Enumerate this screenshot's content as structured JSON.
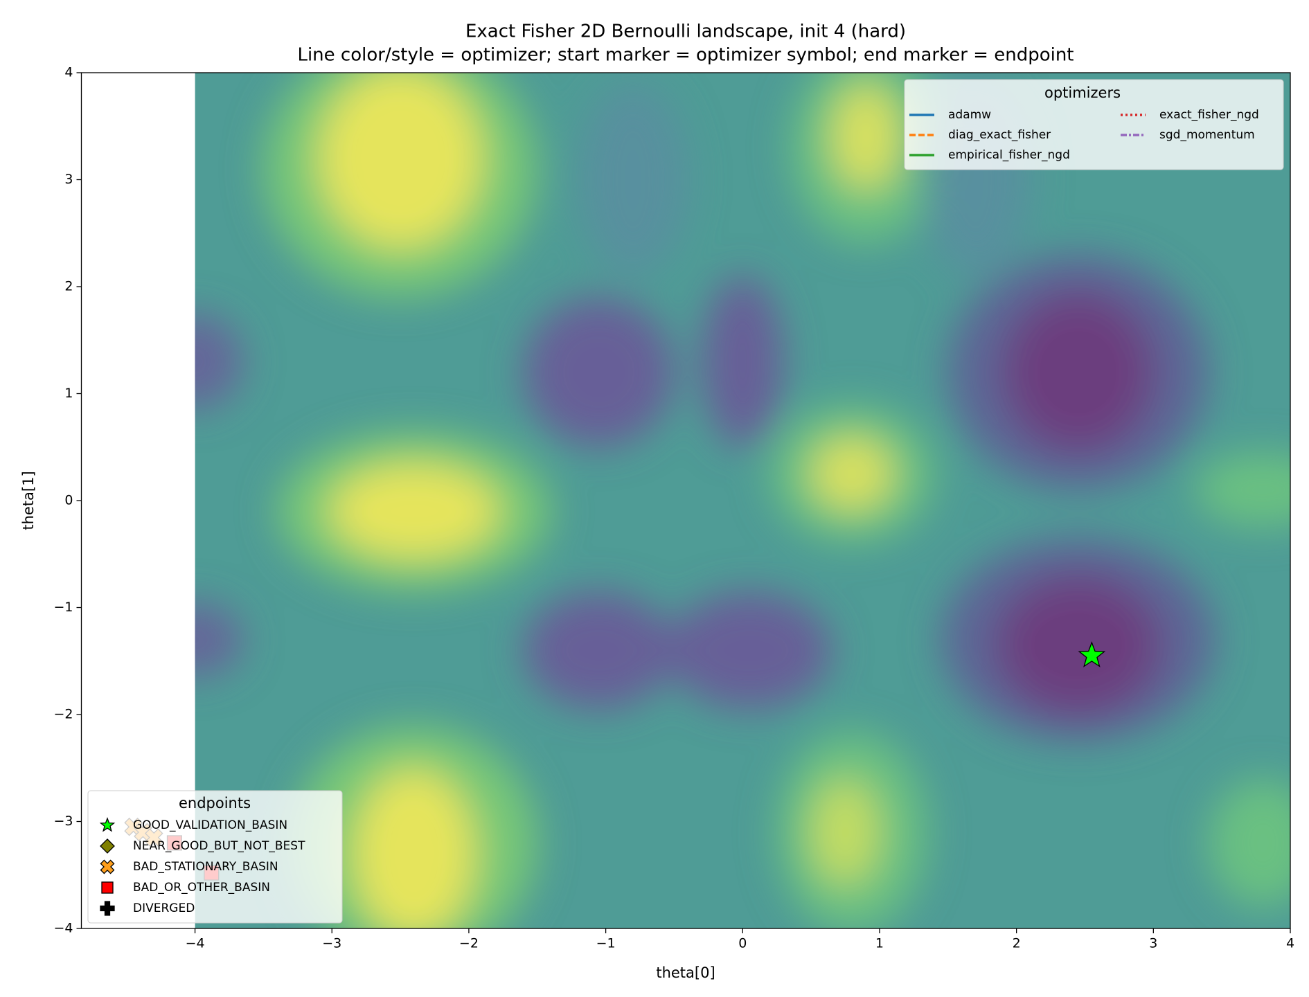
{
  "chart_data": {
    "type": "scatter",
    "title": "Exact Fisher 2D Bernoulli landscape, init 4 (hard)",
    "subtitle": "Line color/style = optimizer; start marker = optimizer symbol; end marker = endpoint",
    "x_label": "theta[0]",
    "y_label": "theta[1]",
    "xlim": [
      -4.83,
      4
    ],
    "ylim": [
      -4,
      4
    ],
    "xticks": [
      {
        "value": -4,
        "label": "−4"
      },
      {
        "value": -3,
        "label": "−3"
      },
      {
        "value": -2,
        "label": "−2"
      },
      {
        "value": -1,
        "label": "−1"
      },
      0,
      1,
      2,
      3,
      4
    ],
    "yticks": [
      {
        "value": -4,
        "label": "−4"
      },
      {
        "value": -3,
        "label": "−3"
      },
      {
        "value": -2,
        "label": "−2"
      },
      {
        "value": -1,
        "label": "−1"
      },
      0,
      1,
      2,
      3,
      4
    ],
    "optimizer_legend": {
      "title": "optimizers",
      "corner": "upper right",
      "entries": [
        {
          "name": "adamw",
          "color": "#1f77b4",
          "style": "solid"
        },
        {
          "name": "diag_exact_fisher",
          "color": "#ff7f0e",
          "style": "dashed"
        },
        {
          "name": "empirical_fisher_ngd",
          "color": "#2ca02c",
          "style": "solid"
        },
        {
          "name": "exact_fisher_ngd",
          "color": "#d62728",
          "style": "dotted"
        },
        {
          "name": "sgd_momentum",
          "color": "#9467bd",
          "style": "dashdot"
        }
      ]
    },
    "legend_title": "endpoints",
    "legend": "lower left",
    "series": [
      {
        "name": "GOOD_VALIDATION_BASIN",
        "marker": "star",
        "color": "#00ff00",
        "x": [
          2.55
        ],
        "values": [
          -1.45
        ]
      },
      {
        "name": "NEAR_GOOD_BUT_NOT_BEST",
        "marker": "diamond",
        "color": "#808000",
        "x": [],
        "values": []
      },
      {
        "name": "BAD_STATIONARY_BASIN",
        "marker": "x",
        "color": "#ff9f1c",
        "x": [
          -4.45,
          -4.38,
          -4.3
        ],
        "values": [
          -3.05,
          -3.1,
          -3.15
        ]
      },
      {
        "name": "BAD_OR_OTHER_BASIN",
        "marker": "square",
        "color": "#ff0000",
        "x": [
          -4.15,
          -3.88
        ],
        "values": [
          -3.2,
          -3.48
        ]
      },
      {
        "name": "DIVERGED",
        "marker": "plus",
        "color": "#000000",
        "x": [],
        "values": []
      }
    ]
  }
}
